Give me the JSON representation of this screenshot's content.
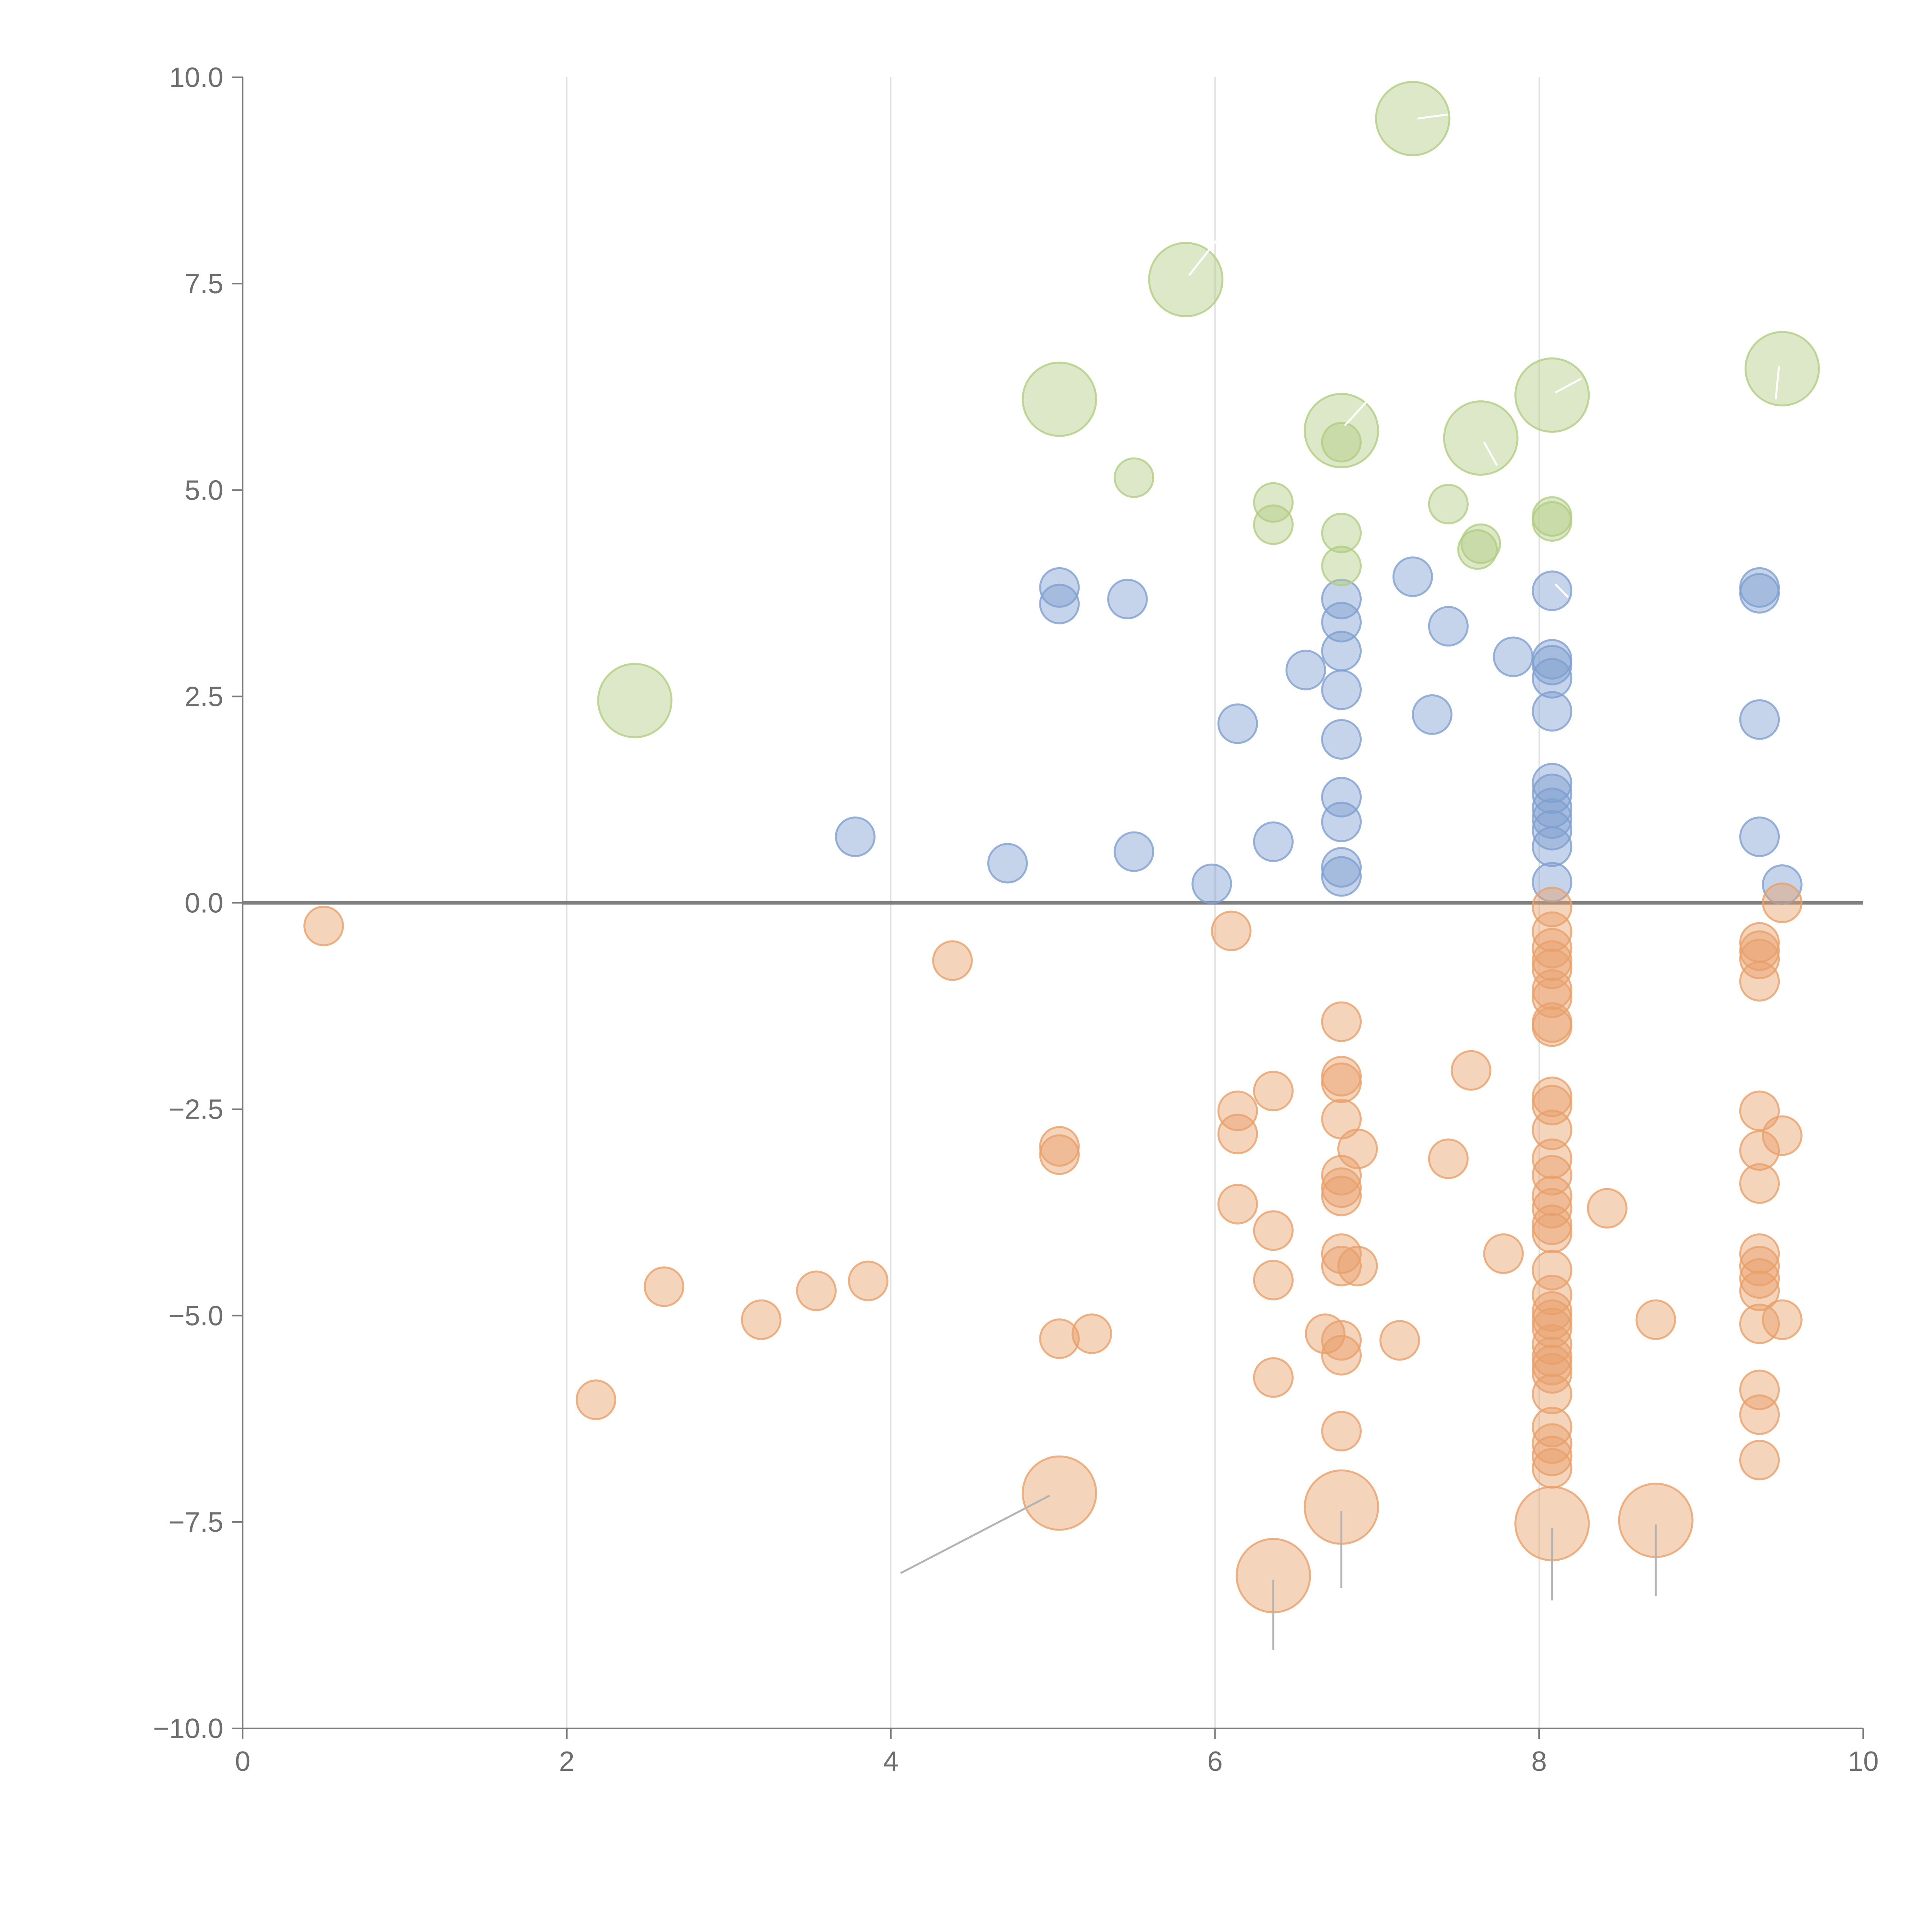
{
  "chart_data": {
    "type": "scatter",
    "title": "",
    "xlabel": "",
    "ylabel": "",
    "xlim": [
      0,
      10
    ],
    "ylim": [
      -10,
      10
    ],
    "x_ticks": [
      "0",
      "2",
      "4",
      "6",
      "8",
      "10"
    ],
    "y_ticks": [
      "10.0",
      "7.5",
      "5.0",
      "2.5",
      "0.0",
      "−2.5",
      "−5.0",
      "−7.5",
      "−10.0"
    ],
    "grid": "vertical lines at x ticks",
    "colors": {
      "positive": "#7f9fd0",
      "negative": "#e8a06a",
      "highlight": "#b2cd82",
      "zero_line": "#808080"
    },
    "series": [
      {
        "name": "positive",
        "color": "#7f9fd0",
        "points": [
          [
            3.78,
            0.8
          ],
          [
            4.72,
            0.48
          ],
          [
            5.04,
            3.82
          ],
          [
            5.04,
            3.62
          ],
          [
            5.46,
            3.68
          ],
          [
            5.5,
            0.62
          ],
          [
            5.98,
            0.23
          ],
          [
            6.14,
            2.17
          ],
          [
            6.36,
            0.74
          ],
          [
            6.56,
            2.82
          ],
          [
            6.78,
            3.68
          ],
          [
            6.78,
            3.4
          ],
          [
            6.78,
            3.05
          ],
          [
            6.78,
            2.58
          ],
          [
            6.78,
            1.98
          ],
          [
            6.78,
            1.28
          ],
          [
            6.78,
            0.98
          ],
          [
            6.78,
            0.43
          ],
          [
            6.78,
            0.32
          ],
          [
            7.22,
            3.95
          ],
          [
            7.34,
            2.28
          ],
          [
            7.44,
            3.35
          ],
          [
            7.84,
            2.98
          ],
          [
            8.08,
            3.78
          ],
          [
            8.08,
            2.95
          ],
          [
            8.08,
            2.88
          ],
          [
            8.08,
            2.72
          ],
          [
            8.08,
            2.32
          ],
          [
            8.08,
            1.45
          ],
          [
            8.08,
            1.32
          ],
          [
            8.08,
            1.15
          ],
          [
            8.08,
            1.02
          ],
          [
            8.08,
            0.88
          ],
          [
            8.08,
            0.68
          ],
          [
            8.08,
            0.25
          ],
          [
            9.36,
            3.82
          ],
          [
            9.36,
            3.75
          ],
          [
            9.36,
            2.22
          ],
          [
            9.36,
            0.8
          ],
          [
            9.5,
            0.22
          ]
        ]
      },
      {
        "name": "negative",
        "color": "#e8a06a",
        "points": [
          [
            0.5,
            -0.28
          ],
          [
            2.18,
            -6.02
          ],
          [
            2.6,
            -4.65
          ],
          [
            3.2,
            -5.05
          ],
          [
            3.54,
            -4.7
          ],
          [
            3.86,
            -4.58
          ],
          [
            4.38,
            -0.7
          ],
          [
            5.04,
            -2.95
          ],
          [
            5.04,
            -3.05
          ],
          [
            5.04,
            -5.28
          ],
          [
            5.24,
            -5.22
          ],
          [
            6.1,
            -0.34
          ],
          [
            6.14,
            -2.52
          ],
          [
            6.14,
            -2.8
          ],
          [
            6.14,
            -3.65
          ],
          [
            6.36,
            -2.28
          ],
          [
            6.36,
            -3.97
          ],
          [
            6.36,
            -4.57
          ],
          [
            6.36,
            -5.75
          ],
          [
            6.68,
            -5.22
          ],
          [
            6.78,
            -1.44
          ],
          [
            6.78,
            -2.1
          ],
          [
            6.78,
            -2.18
          ],
          [
            6.78,
            -2.62
          ],
          [
            6.78,
            -3.3
          ],
          [
            6.78,
            -3.45
          ],
          [
            6.78,
            -3.55
          ],
          [
            6.78,
            -4.25
          ],
          [
            6.78,
            -4.4
          ],
          [
            6.78,
            -5.3
          ],
          [
            6.78,
            -5.48
          ],
          [
            6.78,
            -6.4
          ],
          [
            6.88,
            -2.98
          ],
          [
            6.88,
            -4.4
          ],
          [
            7.14,
            -5.3
          ],
          [
            7.44,
            -3.1
          ],
          [
            7.58,
            -2.03
          ],
          [
            7.78,
            -4.25
          ],
          [
            8.08,
            -0.05
          ],
          [
            8.08,
            -0.35
          ],
          [
            8.08,
            -0.55
          ],
          [
            8.08,
            -0.7
          ],
          [
            8.08,
            -0.8
          ],
          [
            8.08,
            -1.05
          ],
          [
            8.08,
            -1.15
          ],
          [
            8.08,
            -1.45
          ],
          [
            8.08,
            -1.5
          ],
          [
            8.08,
            -2.35
          ],
          [
            8.08,
            -2.45
          ],
          [
            8.08,
            -2.75
          ],
          [
            8.08,
            -3.1
          ],
          [
            8.08,
            -3.3
          ],
          [
            8.08,
            -3.55
          ],
          [
            8.08,
            -3.7
          ],
          [
            8.08,
            -3.9
          ],
          [
            8.08,
            -4.0
          ],
          [
            8.08,
            -4.45
          ],
          [
            8.08,
            -4.75
          ],
          [
            8.08,
            -4.95
          ],
          [
            8.08,
            -5.05
          ],
          [
            8.08,
            -5.15
          ],
          [
            8.08,
            -5.35
          ],
          [
            8.08,
            -5.5
          ],
          [
            8.08,
            -5.6
          ],
          [
            8.08,
            -5.7
          ],
          [
            8.08,
            -5.95
          ],
          [
            8.08,
            -6.35
          ],
          [
            8.08,
            -6.55
          ],
          [
            8.08,
            -6.7
          ],
          [
            8.08,
            -6.85
          ],
          [
            8.42,
            -3.7
          ],
          [
            8.72,
            -5.05
          ],
          [
            9.36,
            -0.48
          ],
          [
            9.36,
            -0.58
          ],
          [
            9.36,
            -0.68
          ],
          [
            9.36,
            -0.95
          ],
          [
            9.36,
            -2.52
          ],
          [
            9.36,
            -3.0
          ],
          [
            9.36,
            -3.4
          ],
          [
            9.36,
            -4.25
          ],
          [
            9.36,
            -4.4
          ],
          [
            9.36,
            -4.55
          ],
          [
            9.36,
            -4.7
          ],
          [
            9.36,
            -5.1
          ],
          [
            9.36,
            -5.9
          ],
          [
            9.36,
            -6.2
          ],
          [
            9.36,
            -6.75
          ],
          [
            9.5,
            0.0
          ],
          [
            9.5,
            -2.82
          ],
          [
            9.5,
            -5.05
          ]
        ]
      },
      {
        "name": "highlight",
        "color": "#b2cd82",
        "points": [
          [
            5.5,
            5.15
          ],
          [
            6.36,
            4.85
          ],
          [
            6.36,
            4.58
          ],
          [
            6.78,
            5.58
          ],
          [
            6.78,
            4.48
          ],
          [
            6.78,
            4.08
          ],
          [
            7.44,
            4.83
          ],
          [
            7.62,
            4.28
          ],
          [
            7.64,
            4.35
          ],
          [
            8.08,
            4.68
          ],
          [
            8.08,
            4.62
          ]
        ]
      }
    ],
    "large_points": [
      {
        "series": "highlight",
        "x": 2.42,
        "y": 2.45
      },
      {
        "series": "highlight",
        "x": 5.04,
        "y": 6.1
      },
      {
        "series": "highlight",
        "x": 5.82,
        "y": 7.55
      },
      {
        "series": "highlight",
        "x": 6.78,
        "y": 5.72
      },
      {
        "series": "highlight",
        "x": 7.22,
        "y": 9.5
      },
      {
        "series": "highlight",
        "x": 7.64,
        "y": 5.63
      },
      {
        "series": "highlight",
        "x": 8.08,
        "y": 6.15
      },
      {
        "series": "highlight",
        "x": 9.5,
        "y": 6.47
      },
      {
        "series": "negative",
        "x": 5.04,
        "y": -7.15
      },
      {
        "series": "negative",
        "x": 6.36,
        "y": -8.15
      },
      {
        "series": "negative",
        "x": 6.78,
        "y": -7.32
      },
      {
        "series": "negative",
        "x": 8.08,
        "y": -7.52
      },
      {
        "series": "negative",
        "x": 8.72,
        "y": -7.48
      }
    ],
    "leader_lines": [
      {
        "style": "grey",
        "x1": 4.98,
        "y1": -7.18,
        "x2": 4.06,
        "y2": -8.12
      },
      {
        "style": "grey",
        "x1": 6.36,
        "y1": -8.2,
        "x2": 6.36,
        "y2": -9.05
      },
      {
        "style": "grey",
        "x1": 6.78,
        "y1": -7.37,
        "x2": 6.78,
        "y2": -8.3
      },
      {
        "style": "grey",
        "x1": 8.08,
        "y1": -7.57,
        "x2": 8.08,
        "y2": -8.45
      },
      {
        "style": "grey",
        "x1": 8.72,
        "y1": -7.53,
        "x2": 8.72,
        "y2": -8.4
      },
      {
        "style": "white",
        "x1": 7.25,
        "y1": 9.5,
        "x2": 7.44,
        "y2": 9.55
      },
      {
        "style": "white",
        "x1": 5.84,
        "y1": 7.6,
        "x2": 6.02,
        "y2": 8.05
      },
      {
        "style": "white",
        "x1": 6.8,
        "y1": 5.78,
        "x2": 6.94,
        "y2": 6.08
      },
      {
        "style": "white",
        "x1": 7.66,
        "y1": 5.58,
        "x2": 7.74,
        "y2": 5.3
      },
      {
        "style": "white",
        "x1": 8.1,
        "y1": 6.18,
        "x2": 8.26,
        "y2": 6.35
      },
      {
        "style": "white",
        "x1": 9.48,
        "y1": 6.5,
        "x2": 9.46,
        "y2": 6.1
      },
      {
        "style": "white",
        "x1": 8.1,
        "y1": 3.86,
        "x2": 8.18,
        "y2": 3.7
      }
    ]
  }
}
